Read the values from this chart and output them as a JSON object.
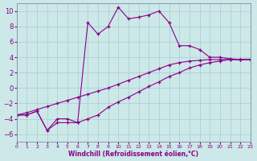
{
  "xlabel": "Windchill (Refroidissement éolien,°C)",
  "bg_color": "#cce8e8",
  "grid_color": "#aacccc",
  "line_color": "#880088",
  "xlim": [
    0,
    23
  ],
  "ylim": [
    -7,
    11
  ],
  "xticks": [
    0,
    1,
    2,
    3,
    4,
    5,
    6,
    7,
    8,
    9,
    10,
    11,
    12,
    13,
    14,
    15,
    16,
    17,
    18,
    19,
    20,
    21,
    22,
    23
  ],
  "yticks": [
    -6,
    -4,
    -2,
    0,
    2,
    4,
    6,
    8,
    10
  ],
  "s1x": [
    0,
    1,
    2,
    3,
    4,
    5,
    6,
    7,
    8,
    9,
    10,
    11,
    12,
    13,
    14,
    15,
    16,
    17,
    18,
    19,
    20,
    21,
    22,
    23
  ],
  "s1y": [
    -3.5,
    -3.5,
    -3.0,
    -5.5,
    -4.0,
    -4.0,
    -4.5,
    8.5,
    7.0,
    8.0,
    10.5,
    9.0,
    9.2,
    9.5,
    10.0,
    8.5,
    5.5,
    5.5,
    5.0,
    4.0,
    4.0,
    3.8,
    3.7,
    3.7
  ],
  "s2x": [
    0,
    1,
    2,
    3,
    4,
    5,
    6,
    7,
    8,
    9,
    10,
    11,
    12,
    13,
    14,
    15,
    16,
    17,
    18,
    19,
    20,
    21,
    22,
    23
  ],
  "s2y": [
    -3.5,
    -3.5,
    -3.0,
    -5.5,
    -4.5,
    -4.5,
    -4.5,
    -4.0,
    -3.5,
    -2.5,
    -1.8,
    -1.2,
    -0.5,
    0.2,
    0.8,
    1.5,
    2.0,
    2.6,
    3.0,
    3.3,
    3.5,
    3.7,
    3.7,
    3.7
  ],
  "s3x": [
    0,
    1,
    2,
    3,
    4,
    5,
    6,
    7,
    8,
    9,
    10,
    11,
    12,
    13,
    14,
    15,
    16,
    17,
    18,
    19,
    20,
    21,
    22,
    23
  ],
  "s3y": [
    -3.5,
    -3.2,
    -2.8,
    -2.4,
    -2.0,
    -1.6,
    -1.2,
    -0.8,
    -0.4,
    0.0,
    0.5,
    1.0,
    1.5,
    2.0,
    2.5,
    3.0,
    3.3,
    3.5,
    3.6,
    3.7,
    3.7,
    3.7,
    3.7,
    3.7
  ]
}
